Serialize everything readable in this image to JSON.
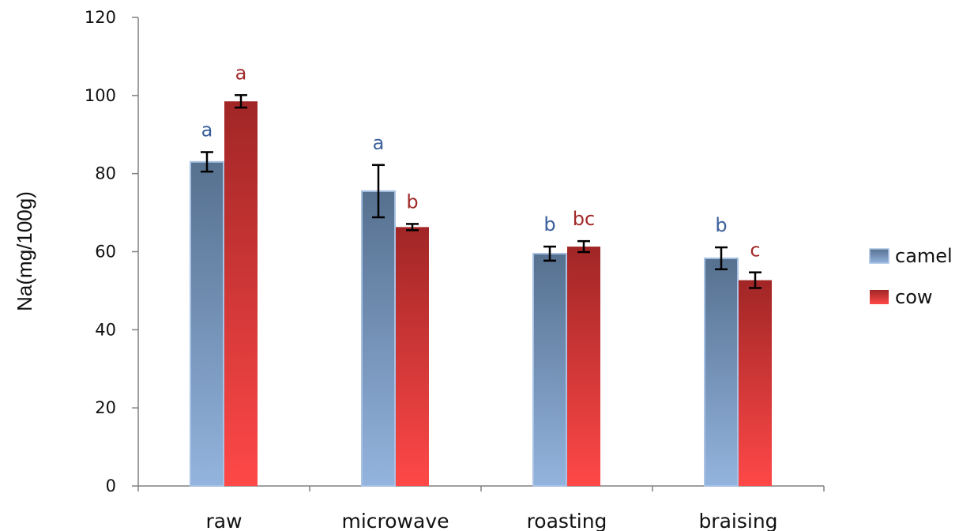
{
  "chart_data": {
    "type": "bar",
    "ylabel": "Na(mg/100g)",
    "xlabel": "",
    "ylim": [
      0,
      120
    ],
    "yticks": [
      0,
      20,
      40,
      60,
      80,
      100,
      120
    ],
    "grid": false,
    "legend_position": "right",
    "categories": [
      "raw",
      "microwave",
      "roasting",
      "braising"
    ],
    "series": [
      {
        "name": "camel",
        "color_top": "#56708f",
        "color_bottom": "#93b4de",
        "values": [
          83,
          75.5,
          59.5,
          58.3
        ],
        "errors": [
          2.5,
          6.7,
          1.8,
          2.8
        ],
        "letters": [
          "a",
          "a",
          "b",
          "b"
        ],
        "letter_color": "#3a5f9a"
      },
      {
        "name": "cow",
        "color_top": "#a12626",
        "color_bottom": "#ff4848",
        "values": [
          98.5,
          66.3,
          61.3,
          52.7
        ],
        "errors": [
          1.6,
          0.8,
          1.4,
          2.0
        ],
        "letters": [
          "a",
          "b",
          "bc",
          "c"
        ],
        "letter_color": "#a12a2a"
      }
    ]
  }
}
